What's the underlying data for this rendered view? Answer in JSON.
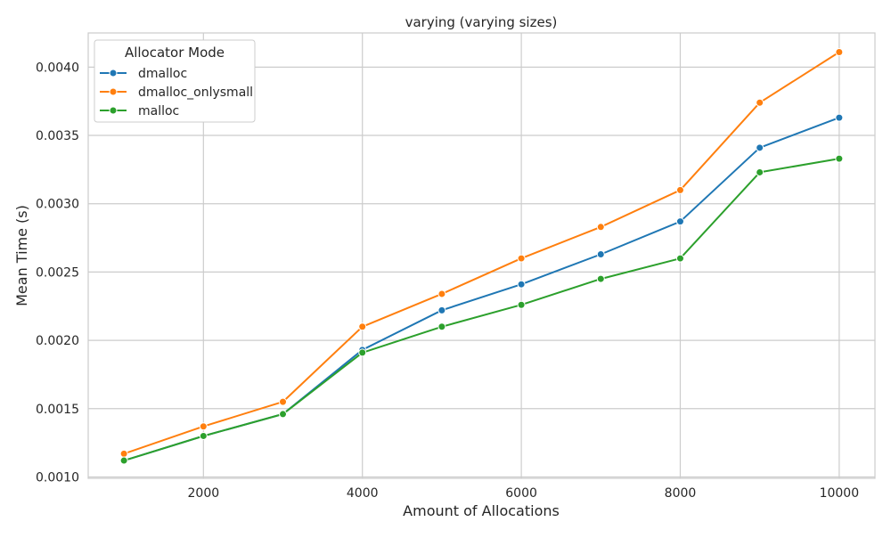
{
  "chart_data": {
    "type": "line",
    "title": "varying (varying sizes)",
    "xlabel": "Amount of Allocations",
    "ylabel": "Mean Time (s)",
    "xlim": [
      550,
      10450
    ],
    "ylim": [
      0.00099,
      0.00425
    ],
    "xticks": [
      2000,
      4000,
      6000,
      8000,
      10000
    ],
    "xtick_labels": [
      "2000",
      "4000",
      "6000",
      "8000",
      "10000"
    ],
    "yticks": [
      0.001,
      0.0015,
      0.002,
      0.0025,
      0.003,
      0.0035,
      0.004
    ],
    "ytick_labels": [
      "0.0010",
      "0.0015",
      "0.0020",
      "0.0025",
      "0.0030",
      "0.0035",
      "0.0040"
    ],
    "grid": true,
    "legend": {
      "title": "Allocator Mode",
      "placement": "top-left"
    },
    "x": [
      1000,
      2000,
      3000,
      4000,
      5000,
      6000,
      7000,
      8000,
      9000,
      10000
    ],
    "series": [
      {
        "name": "dmalloc",
        "color": "#1f77b4",
        "values": [
          0.00112,
          0.0013,
          0.00146,
          0.00193,
          0.00222,
          0.00241,
          0.00263,
          0.00287,
          0.00341,
          0.00363
        ]
      },
      {
        "name": "dmalloc_onlysmall",
        "color": "#ff7f0e",
        "values": [
          0.00117,
          0.00137,
          0.00155,
          0.0021,
          0.00234,
          0.0026,
          0.00283,
          0.0031,
          0.00374,
          0.00411
        ]
      },
      {
        "name": "malloc",
        "color": "#2ca02c",
        "values": [
          0.00112,
          0.0013,
          0.00146,
          0.00191,
          0.0021,
          0.00226,
          0.00245,
          0.0026,
          0.00323,
          0.00333
        ]
      }
    ]
  }
}
